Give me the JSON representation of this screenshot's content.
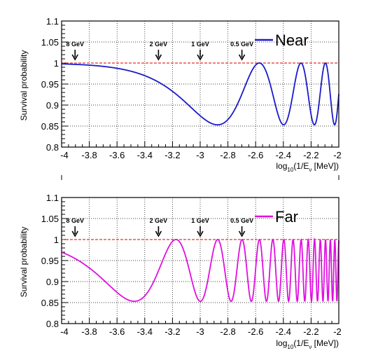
{
  "chart_data": [
    {
      "type": "line",
      "panel": "top",
      "ylabel": "Survival probability",
      "xlabel": {
        "main": "log",
        "sub": "10",
        "mid": "(1/E",
        "nu": "ν",
        "rest": " [MeV])"
      },
      "xlim": [
        -4,
        -2
      ],
      "ylim": [
        0.8,
        1.1
      ],
      "grid": true,
      "legend_position": "top-right",
      "xticks": [
        "-4",
        "-3.8",
        "-3.6",
        "-3.4",
        "-3.2",
        "-3",
        "-2.8",
        "-2.6",
        "-2.4",
        "-2.2",
        "-2"
      ],
      "yticks": [
        "0.8",
        "0.85",
        "0.9",
        "0.95",
        "1",
        "1.05",
        "1.1"
      ],
      "reference_line": {
        "y": 1.0,
        "color": "#e8302a",
        "style": "dashed"
      },
      "energy_markers": [
        {
          "label": "8 GeV",
          "x": -3.903
        },
        {
          "label": "2 GeV",
          "x": -3.301
        },
        {
          "label": "1 GeV",
          "x": -3.0
        },
        {
          "label": "0.5 GeV",
          "x": -2.699
        }
      ],
      "series": [
        {
          "name": "Near",
          "color": "#1a1acc",
          "phase_scale": 1178,
          "amplitude": 0.147
        }
      ]
    },
    {
      "type": "line",
      "panel": "bottom",
      "ylabel": "Survival probability",
      "xlabel": {
        "main": "log",
        "sub": "10",
        "mid": "(1/E",
        "nu": "ν",
        "rest": " [MeV])"
      },
      "xlim": [
        -4,
        -2
      ],
      "ylim": [
        0.8,
        1.1
      ],
      "grid": true,
      "legend_position": "top-right",
      "xticks": [
        "-4",
        "-3.8",
        "-3.6",
        "-3.4",
        "-3.2",
        "-3",
        "-2.8",
        "-2.6",
        "-2.4",
        "-2.2",
        "-2"
      ],
      "yticks": [
        "0.8",
        "0.85",
        "0.9",
        "0.95",
        "1",
        "1.05",
        "1.1"
      ],
      "reference_line": {
        "y": 1.0,
        "color": "#e8302a",
        "style": "dashed"
      },
      "energy_markers": [
        {
          "label": "8 GeV",
          "x": -3.903
        },
        {
          "label": "2 GeV",
          "x": -3.301
        },
        {
          "label": "1 GeV",
          "x": -3.0
        },
        {
          "label": "0.5 GeV",
          "x": -2.699
        }
      ],
      "series": [
        {
          "name": "Far",
          "color": "#e010e0",
          "phase_scale": 4700,
          "amplitude": 0.147
        }
      ]
    }
  ]
}
